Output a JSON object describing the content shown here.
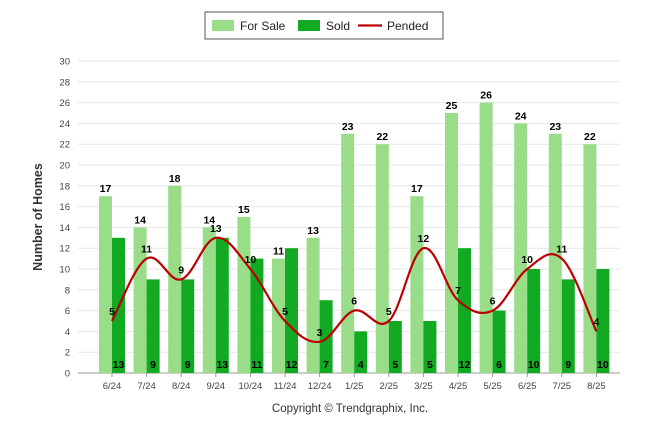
{
  "chart_data": {
    "type": "bar",
    "categories": [
      "6/24",
      "7/24",
      "8/24",
      "9/24",
      "10/24",
      "11/24",
      "12/24",
      "1/25",
      "2/25",
      "3/25",
      "4/25",
      "5/25",
      "6/25",
      "7/25",
      "8/25"
    ],
    "series": [
      {
        "name": "For Sale",
        "type": "bar",
        "color": "#99dd88",
        "values": [
          17,
          14,
          18,
          14,
          15,
          11,
          13,
          23,
          22,
          17,
          25,
          26,
          24,
          23,
          22
        ]
      },
      {
        "name": "Sold",
        "type": "bar",
        "color": "#11aa22",
        "values": [
          13,
          9,
          9,
          13,
          11,
          12,
          7,
          4,
          5,
          5,
          12,
          6,
          10,
          9,
          10
        ]
      },
      {
        "name": "Pended",
        "type": "line",
        "color": "#bb0000",
        "values": [
          5,
          11,
          9,
          13,
          10,
          5,
          3,
          6,
          5,
          12,
          7,
          6,
          10,
          11,
          4
        ]
      }
    ],
    "ylabel": "Number of Homes",
    "xlabel": "",
    "ylim": [
      0,
      30
    ],
    "yticks": [
      0,
      2,
      4,
      6,
      8,
      10,
      12,
      14,
      16,
      18,
      20,
      22,
      24,
      26,
      28,
      30
    ],
    "grid": true,
    "legend_position": "top-center",
    "credit": "Copyright © Trendgraphix, Inc."
  }
}
